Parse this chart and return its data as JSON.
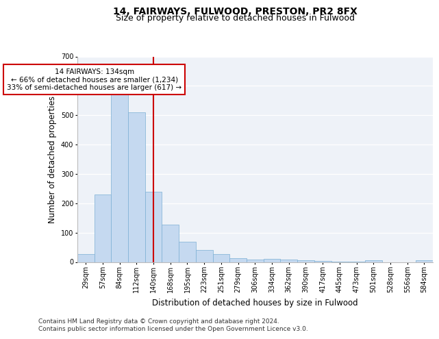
{
  "title": "14, FAIRWAYS, FULWOOD, PRESTON, PR2 8FX",
  "subtitle": "Size of property relative to detached houses in Fulwood",
  "xlabel": "Distribution of detached houses by size in Fulwood",
  "ylabel": "Number of detached properties",
  "categories": [
    "29sqm",
    "57sqm",
    "84sqm",
    "112sqm",
    "140sqm",
    "168sqm",
    "195sqm",
    "223sqm",
    "251sqm",
    "279sqm",
    "306sqm",
    "334sqm",
    "362sqm",
    "390sqm",
    "417sqm",
    "445sqm",
    "473sqm",
    "501sqm",
    "528sqm",
    "556sqm",
    "584sqm"
  ],
  "values": [
    27,
    230,
    575,
    510,
    240,
    128,
    70,
    42,
    27,
    14,
    8,
    10,
    8,
    5,
    3,
    2,
    2,
    5,
    0,
    0,
    5
  ],
  "bar_color": "#c5d9f0",
  "bar_edge_color": "#7bafd4",
  "vline_x": 4,
  "vline_color": "#cc0000",
  "annotation_text": "14 FAIRWAYS: 134sqm\n← 66% of detached houses are smaller (1,234)\n33% of semi-detached houses are larger (617) →",
  "annotation_box_color": "#ffffff",
  "annotation_box_edge": "#cc0000",
  "ylim": [
    0,
    700
  ],
  "yticks": [
    0,
    100,
    200,
    300,
    400,
    500,
    600,
    700
  ],
  "bg_color": "#eef2f8",
  "plot_bg_color": "#eef2f8",
  "footer_line1": "Contains HM Land Registry data © Crown copyright and database right 2024.",
  "footer_line2": "Contains public sector information licensed under the Open Government Licence v3.0.",
  "title_fontsize": 10,
  "subtitle_fontsize": 9,
  "label_fontsize": 8.5,
  "tick_fontsize": 7,
  "footer_fontsize": 6.5,
  "annotation_fontsize": 7.5
}
